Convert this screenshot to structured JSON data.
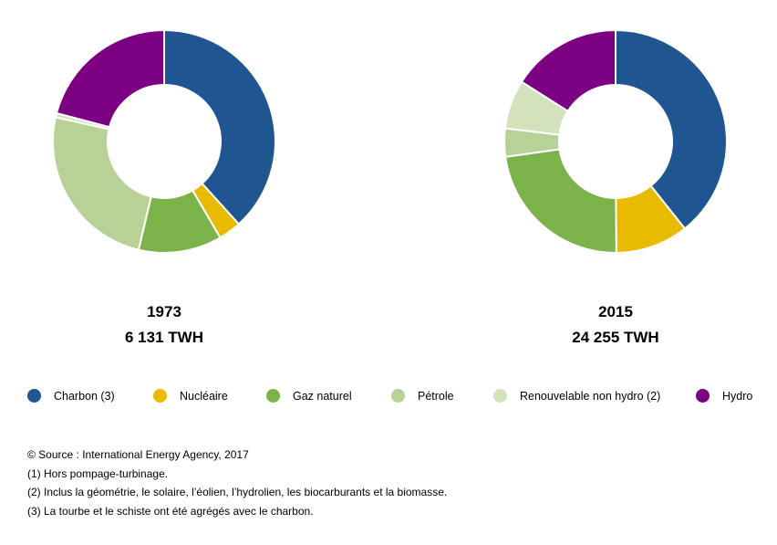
{
  "chart_data": [
    {
      "type": "pie",
      "donut": true,
      "title": "1973",
      "subtitle": "6 131 TWH",
      "categories": [
        "Charbon (3)",
        "Nucléaire",
        "Gaz naturel",
        "Pétrole",
        "Renouvelable non hydro (2)",
        "Hydro"
      ],
      "values": [
        38.3,
        3.3,
        12.1,
        24.8,
        0.6,
        20.9
      ],
      "unit": "%"
    },
    {
      "type": "pie",
      "donut": true,
      "title": "2015",
      "subtitle": "24 255 TWH",
      "categories": [
        "Charbon (3)",
        "Nucléaire",
        "Gaz naturel",
        "Pétrole",
        "Renouvelable non hydro (2)",
        "Hydro"
      ],
      "values": [
        39.3,
        10.6,
        22.9,
        4.1,
        7.1,
        16.0
      ],
      "unit": "%"
    }
  ],
  "legend": [
    {
      "label": "Charbon (3)",
      "color": "#1f5591"
    },
    {
      "label": "Nucléaire",
      "color": "#e8bb00"
    },
    {
      "label": "Gaz naturel",
      "color": "#7cb24a"
    },
    {
      "label": "Pétrole",
      "color": "#b8d196"
    },
    {
      "label": "Renouvelable non hydro (2)",
      "color": "#d3e2bb"
    },
    {
      "label": "Hydro",
      "color": "#7b0082"
    }
  ],
  "notes": [
    "© Source : International Energy Agency, 2017",
    "(1) Hors pompage-turbinage.",
    "(2) Inclus la géométrie, le solaire, l’éolien, l’hydrolien, les biocarburants et la biomasse.",
    "(3) La tourbe et le schiste ont été agrégés avec le charbon."
  ]
}
